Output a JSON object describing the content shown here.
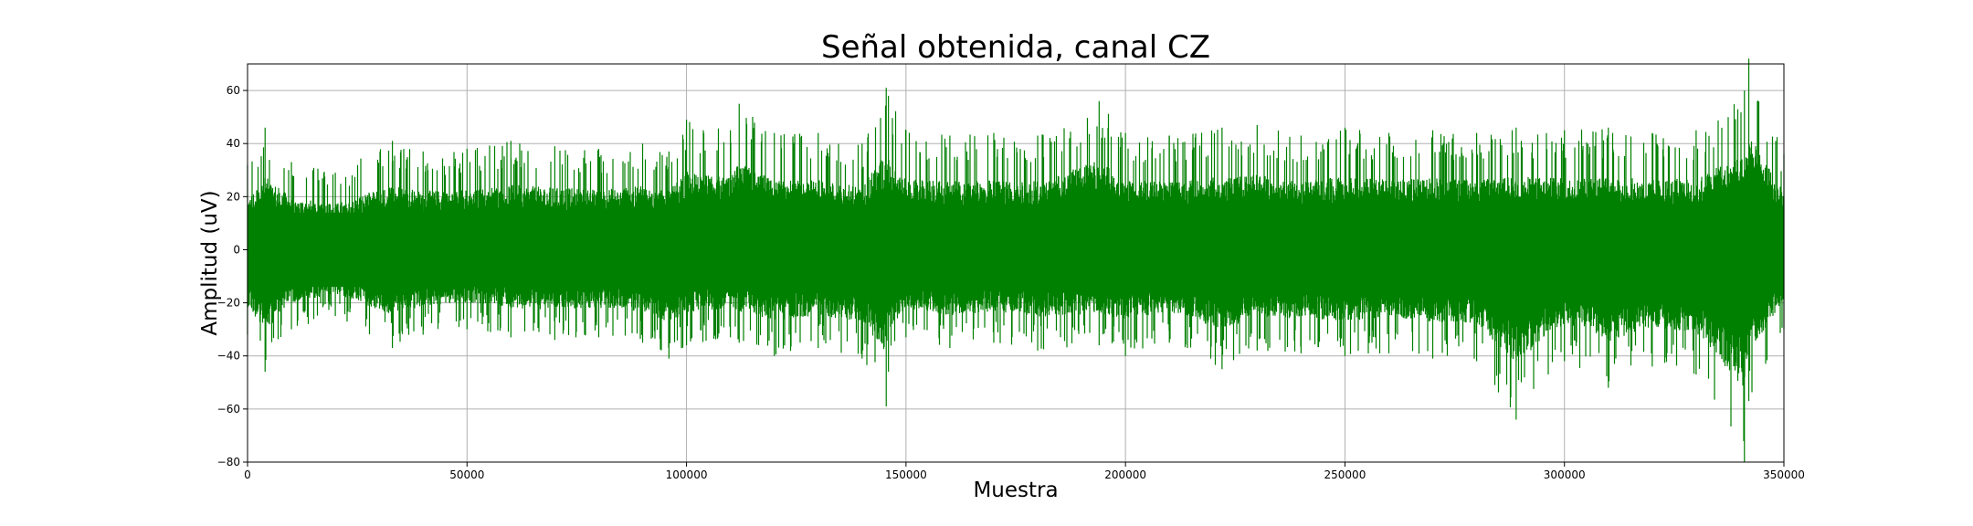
{
  "chart_data": {
    "type": "line",
    "title": "Señal obtenida, canal CZ",
    "xlabel": "Muestra",
    "ylabel": "Amplitud (uV)",
    "xlim": [
      0,
      350000
    ],
    "ylim": [
      -80,
      70
    ],
    "x_ticks": [
      "0",
      "50000",
      "100000",
      "150000",
      "200000",
      "250000",
      "300000",
      "350000"
    ],
    "y_ticks": [
      "60",
      "40",
      "20",
      "0",
      "−20",
      "−40",
      "−60",
      "−80"
    ],
    "grid": true,
    "color": "#008000",
    "series": [
      {
        "x": [
          0,
          4000,
          10000,
          20000,
          33000,
          40000,
          50000,
          60000,
          70000,
          80000,
          90000,
          96000,
          100000,
          110000,
          112000,
          120000,
          130000,
          140000,
          145500,
          146000,
          150000,
          160000,
          170000,
          180000,
          194000,
          200000,
          210000,
          222000,
          230000,
          240000,
          250000,
          260000,
          270000,
          280000,
          289000,
          300000,
          310000,
          320000,
          330000,
          341000,
          342000,
          350000
        ],
        "max": [
          32,
          46,
          33,
          29,
          41,
          37,
          38,
          41,
          39,
          38,
          40,
          37,
          49,
          45,
          55,
          44,
          44,
          40,
          61,
          58,
          45,
          43,
          44,
          43,
          56,
          44,
          43,
          46,
          47,
          43,
          46,
          44,
          45,
          44,
          46,
          45,
          46,
          44,
          45,
          60,
          72,
          36
        ],
        "min": [
          -32,
          -46,
          -30,
          -25,
          -37,
          -32,
          -30,
          -33,
          -34,
          -33,
          -35,
          -41,
          -36,
          -33,
          -35,
          -40,
          -37,
          -41,
          -59,
          -46,
          -33,
          -37,
          -35,
          -38,
          -36,
          -40,
          -35,
          -45,
          -38,
          -39,
          -40,
          -39,
          -41,
          -42,
          -64,
          -42,
          -52,
          -44,
          -47,
          -80,
          -57,
          -30
        ]
      }
    ]
  }
}
